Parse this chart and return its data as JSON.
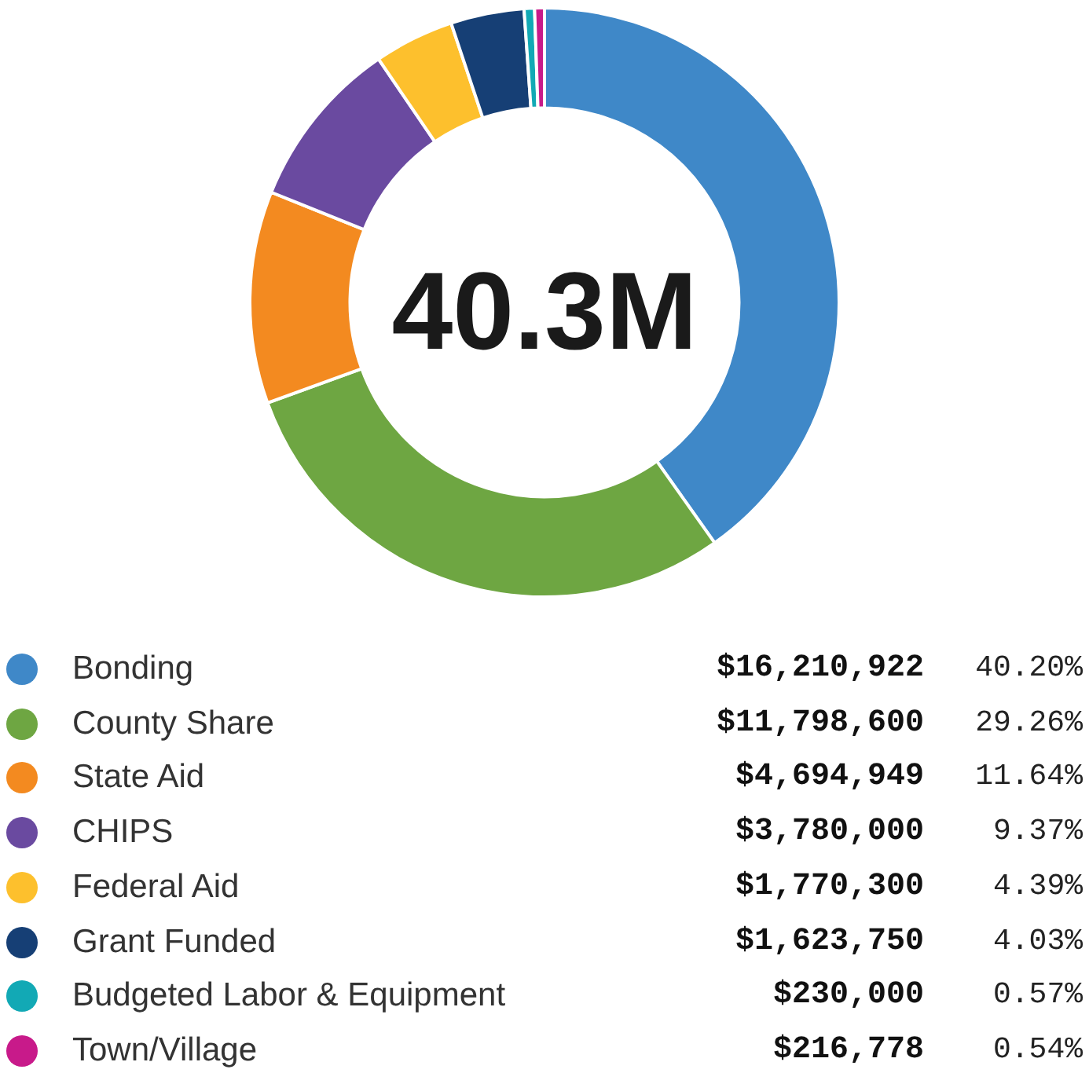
{
  "chart_data": {
    "type": "donut",
    "title": "40.3M",
    "categories": [
      "Bonding",
      "County Share",
      "State Aid",
      "CHIPS",
      "Federal Aid",
      "Grant Funded",
      "Budgeted Labor & Equipment",
      "Town/Village"
    ],
    "values": [
      16210922,
      11798600,
      4694949,
      3780000,
      1770300,
      1623750,
      230000,
      216778
    ],
    "colors": [
      "#3f88c8",
      "#6ea642",
      "#f38a20",
      "#6a4aa0",
      "#fdc02d",
      "#163f75",
      "#12a9b5",
      "#c81a8a"
    ],
    "value_labels": [
      "$16,210,922",
      "$11,798,600",
      "$4,694,949",
      "$3,780,000",
      "$1,770,300",
      "$1,623,750",
      "$230,000",
      "$216,778"
    ],
    "annotations": [
      "40.20%",
      "29.26%",
      "11.64%",
      "9.37%",
      "4.39%",
      "4.03%",
      "0.57%",
      "0.54%"
    ],
    "legend": "bottom"
  }
}
